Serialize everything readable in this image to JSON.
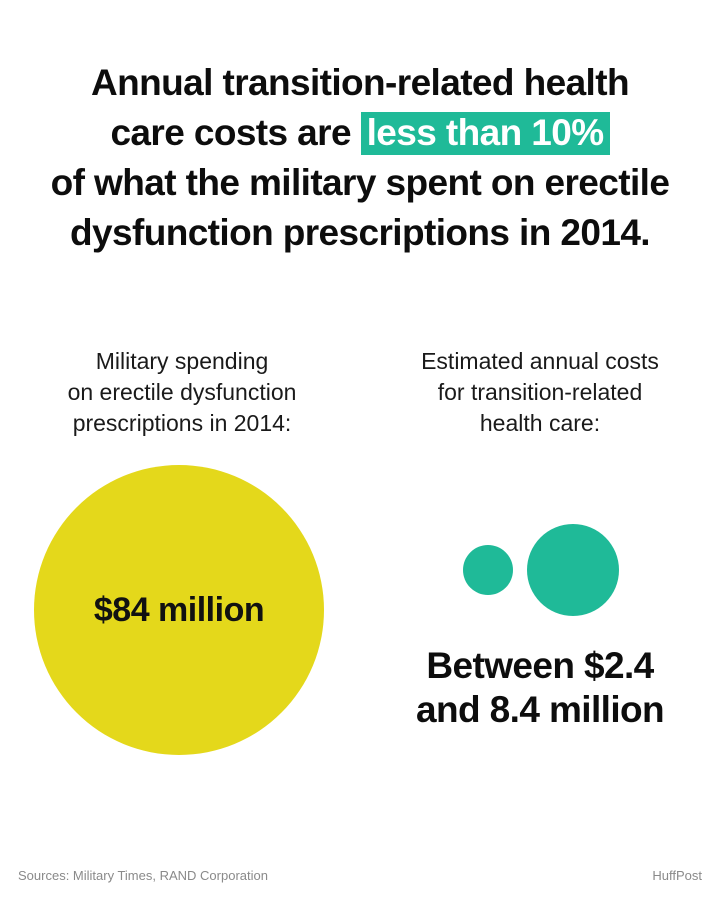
{
  "headline": {
    "line1": "Annual transition-related health",
    "line2_pre": "care costs are ",
    "line2_highlight": "less than 10%",
    "line3": "of what the military spent on erectile",
    "line4": "dysfunction prescriptions in 2014."
  },
  "left": {
    "label_line1": "Military spending",
    "label_line2": "on erectile dysfunction",
    "label_line3": "prescriptions in 2014:",
    "value_label": "$84 million"
  },
  "right": {
    "label_line1": "Estimated annual costs",
    "label_line2": "for transition-related",
    "label_line3": "health care:",
    "value_line1": "Between $2.4",
    "value_line2": "and 8.4 million"
  },
  "footer": {
    "sources": "Sources: Military Times, RAND Corporation",
    "brand": "HuffPost"
  },
  "colors": {
    "highlight": "#1fba98",
    "left_circle": "#e4d81b",
    "right_circles": "#1fba98"
  },
  "chart_data": {
    "type": "bubble",
    "unit": "$ million",
    "items": [
      {
        "category": "Military spending on erectile dysfunction prescriptions in 2014",
        "value": 84
      },
      {
        "category": "Estimated annual costs for transition-related health care (low)",
        "value": 2.4
      },
      {
        "category": "Estimated annual costs for transition-related health care (high)",
        "value": 8.4
      }
    ]
  }
}
